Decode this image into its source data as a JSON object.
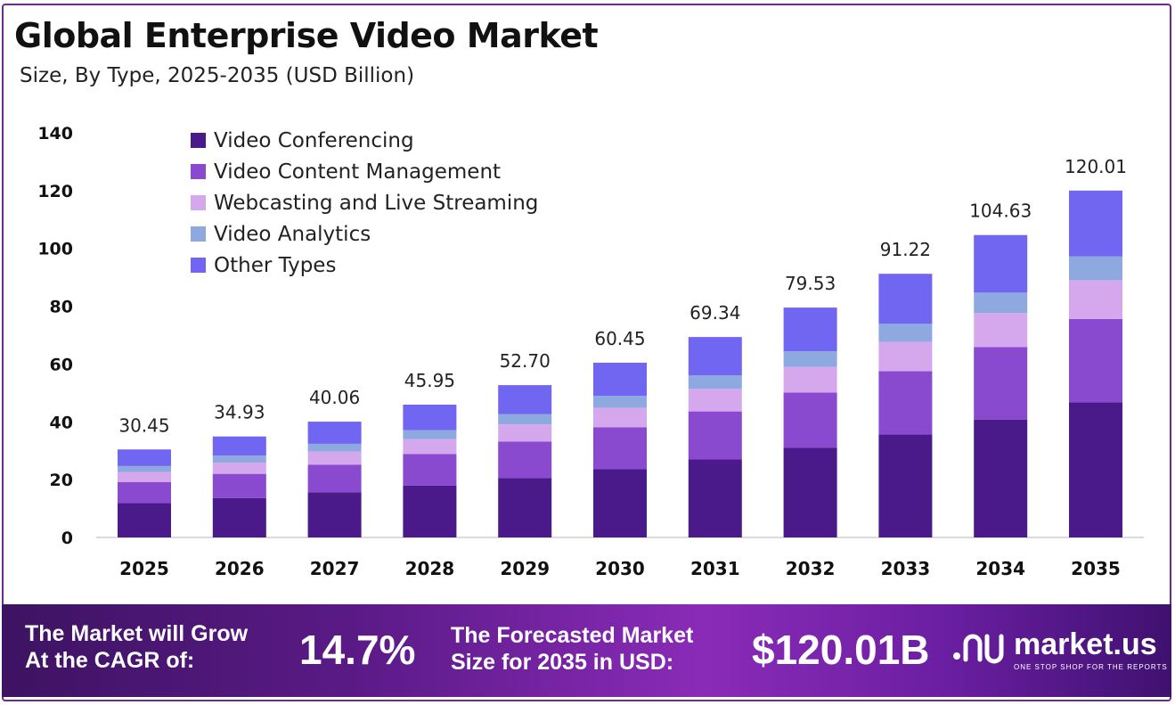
{
  "title": "Global Enterprise Video Market",
  "subtitle": "Size, By Type, 2025-2035 (USD Billion)",
  "chart_data": {
    "type": "bar",
    "stacked": true,
    "categories": [
      "2025",
      "2026",
      "2027",
      "2028",
      "2029",
      "2030",
      "2031",
      "2032",
      "2033",
      "2034",
      "2035"
    ],
    "totals": [
      30.45,
      34.93,
      40.06,
      45.95,
      52.7,
      60.45,
      69.34,
      79.53,
      91.22,
      104.63,
      120.01
    ],
    "total_labels": [
      "30.45",
      "34.93",
      "40.06",
      "45.95",
      "52.70",
      "60.45",
      "69.34",
      "79.53",
      "91.22",
      "104.63",
      "120.01"
    ],
    "series": [
      {
        "name": "Video Conferencing",
        "color": "#4b1a8a",
        "values": [
          11.9,
          13.6,
          15.6,
          17.9,
          20.6,
          23.6,
          27.0,
          31.0,
          35.6,
          40.8,
          46.8
        ]
      },
      {
        "name": "Video Content Management",
        "color": "#8a4ad0",
        "values": [
          7.3,
          8.4,
          9.6,
          11.0,
          12.6,
          14.5,
          16.6,
          19.1,
          21.9,
          25.1,
          28.8
        ]
      },
      {
        "name": "Webcasting and Live Streaming",
        "color": "#d5a8ee",
        "values": [
          3.4,
          3.9,
          4.5,
          5.1,
          5.9,
          6.8,
          7.8,
          8.9,
          10.2,
          11.7,
          13.4
        ]
      },
      {
        "name": "Video Analytics",
        "color": "#8ea9e0",
        "values": [
          2.1,
          2.4,
          2.7,
          3.1,
          3.6,
          4.1,
          4.7,
          5.4,
          6.2,
          7.1,
          8.2
        ]
      },
      {
        "name": "Other Types",
        "color": "#7066f2",
        "values": [
          5.75,
          6.63,
          7.66,
          8.85,
          10.0,
          11.45,
          13.24,
          15.13,
          17.32,
          19.93,
          22.81
        ]
      }
    ],
    "y_ticks": [
      "0",
      "20",
      "40",
      "60",
      "80",
      "100",
      "120",
      "140"
    ],
    "ylim": [
      0,
      140
    ],
    "legend_position": "top-left",
    "grid": false
  },
  "footer": {
    "cagr_label_line1": "The Market will Grow",
    "cagr_label_line2": "At the CAGR of:",
    "cagr_value": "14.7%",
    "forecast_label_line1": "The Forecasted Market",
    "forecast_label_line2": "Size for 2035 in USD:",
    "forecast_value": "$120.01B",
    "logo_name": "market.us",
    "logo_tagline": "ONE STOP SHOP FOR THE REPORTS"
  }
}
